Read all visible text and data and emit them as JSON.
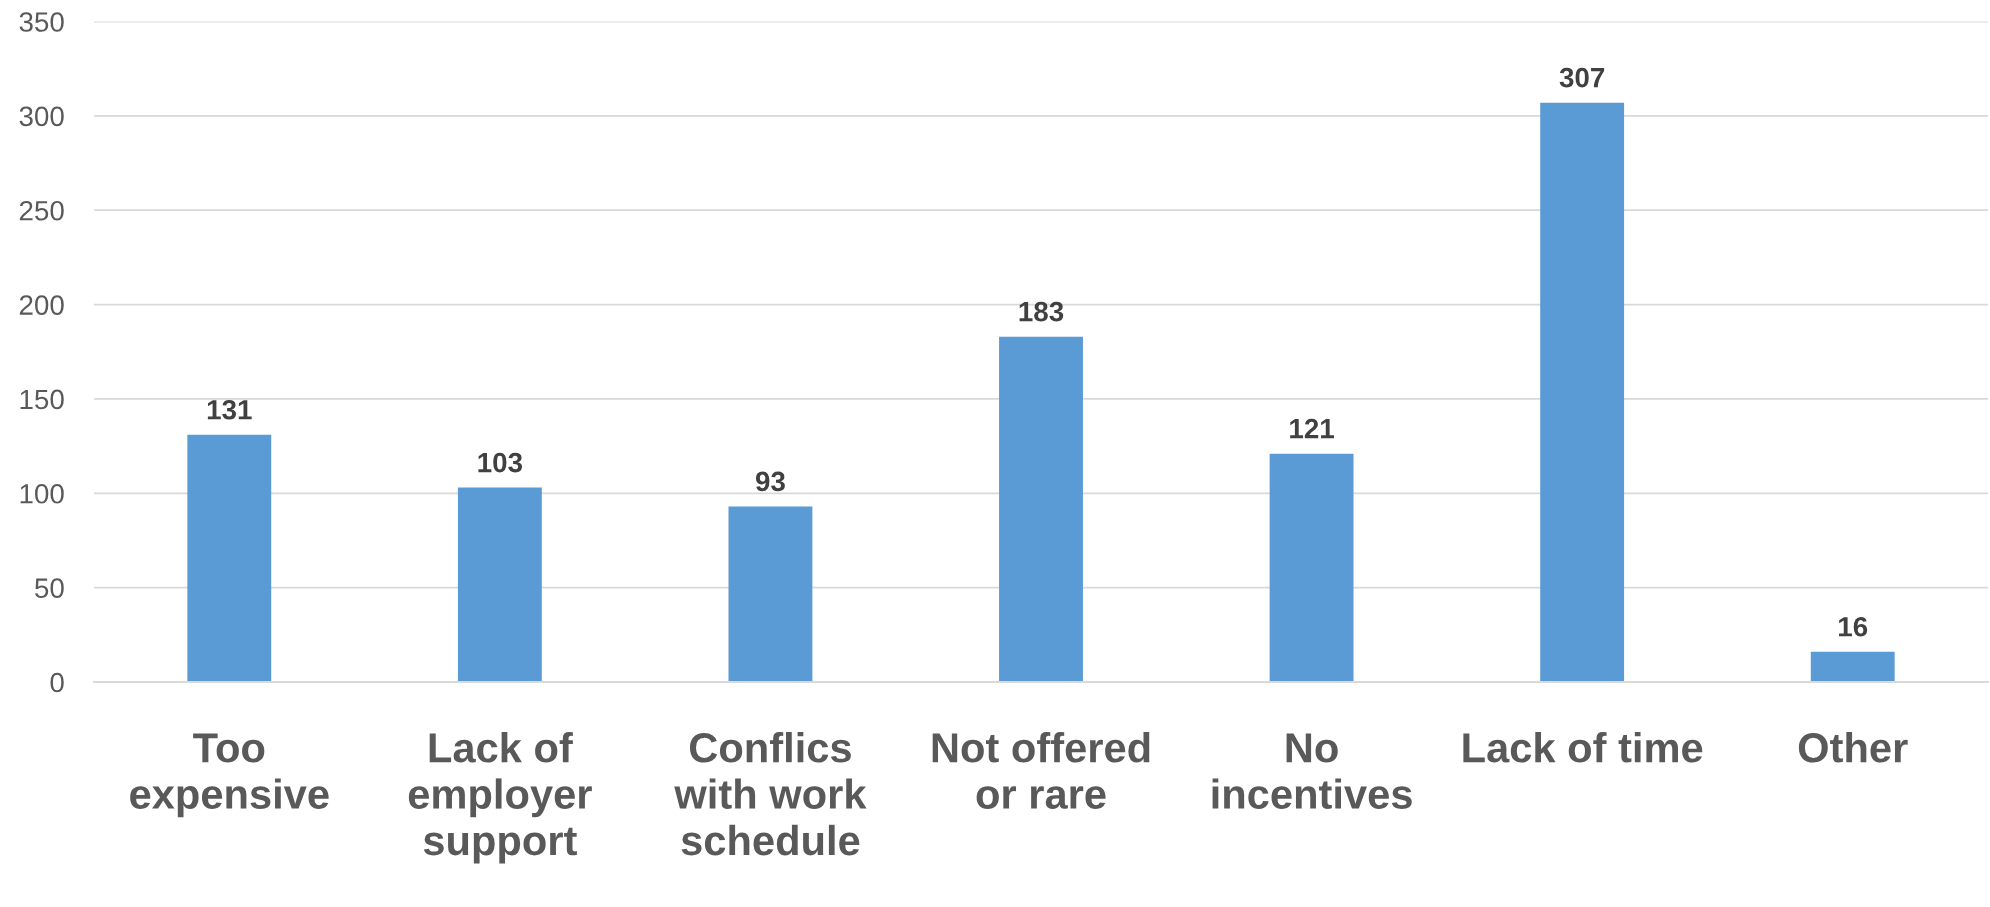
{
  "chart_data": {
    "type": "bar",
    "categories": [
      "Too\nexpensive",
      "Lack of\nemployer\nsupport",
      "Conflics\nwith work\nschedule",
      "Not offered\nor rare",
      "No\nincentives",
      "Lack of time",
      "Other"
    ],
    "values": [
      131,
      103,
      93,
      183,
      121,
      307,
      16
    ],
    "color": "#5b9bd5",
    "ylim": [
      0,
      350
    ],
    "yticks": [
      0,
      50,
      100,
      150,
      200,
      250,
      300,
      350
    ],
    "grid": "y",
    "data_labels": true
  }
}
